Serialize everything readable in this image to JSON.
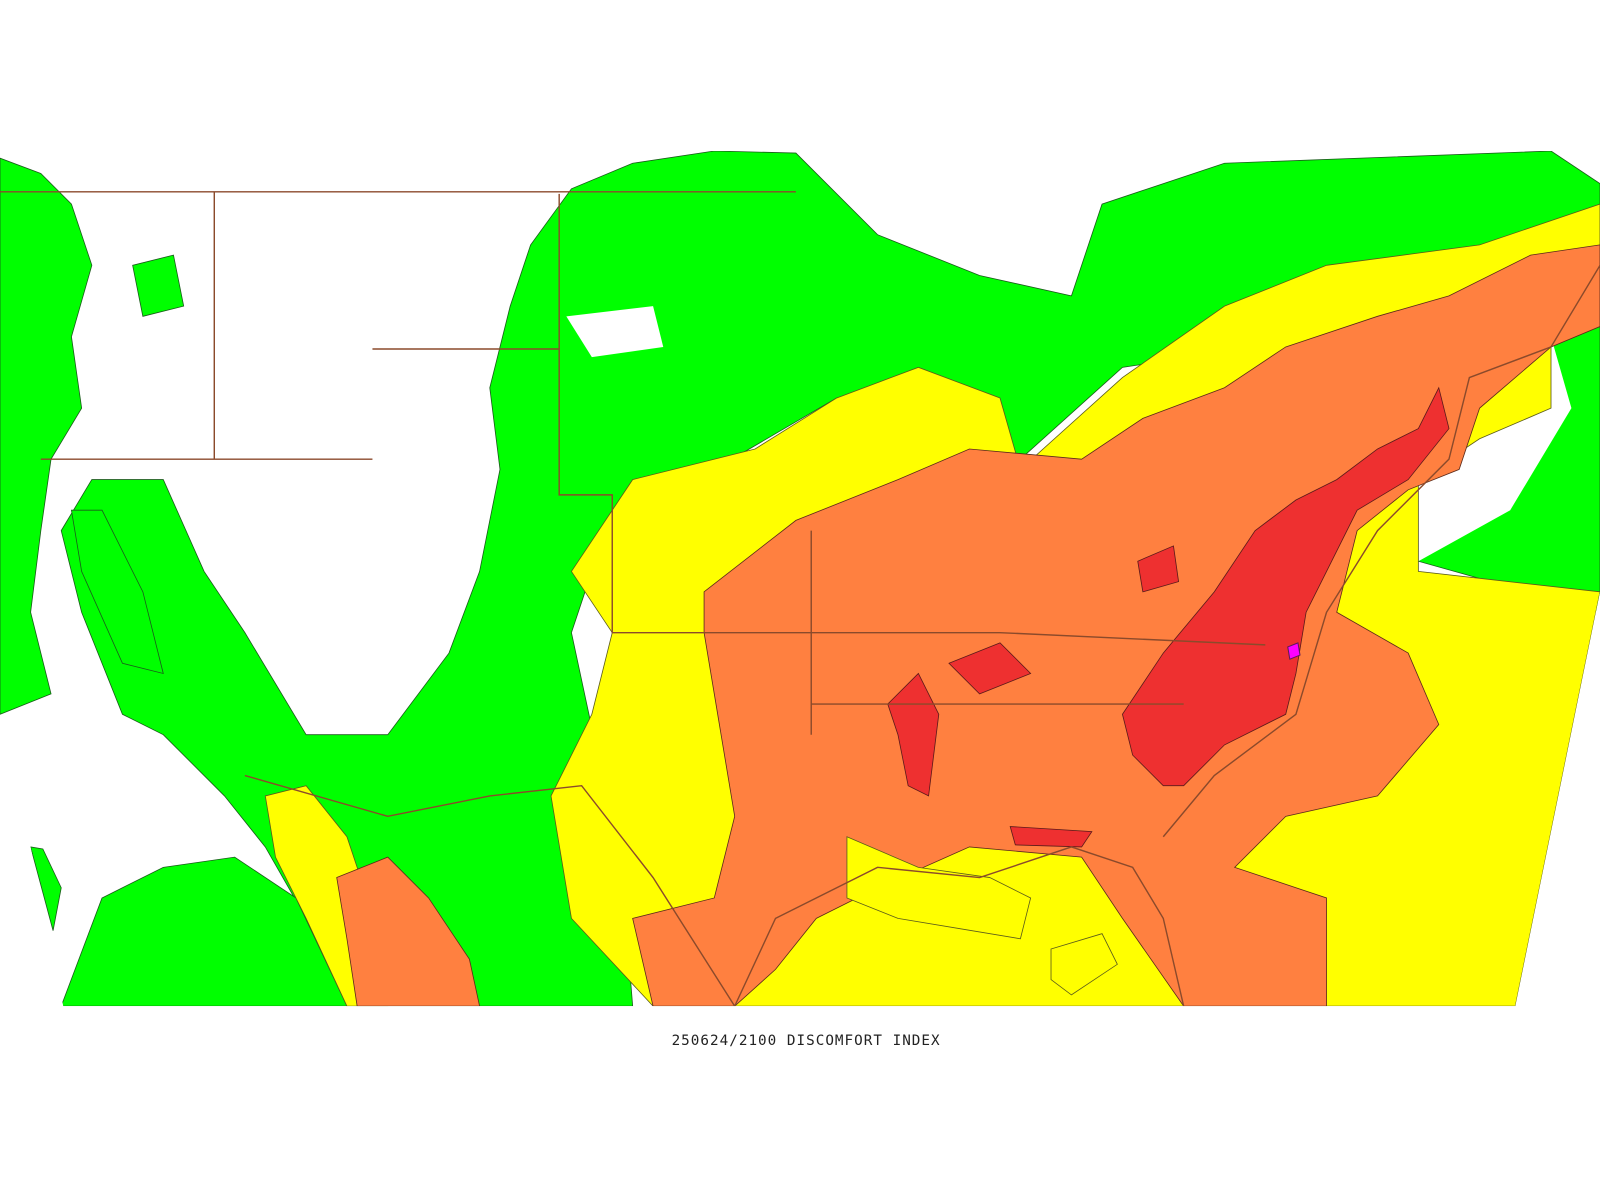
{
  "caption": "250624/2100 DISCOMFORT INDEX"
}
